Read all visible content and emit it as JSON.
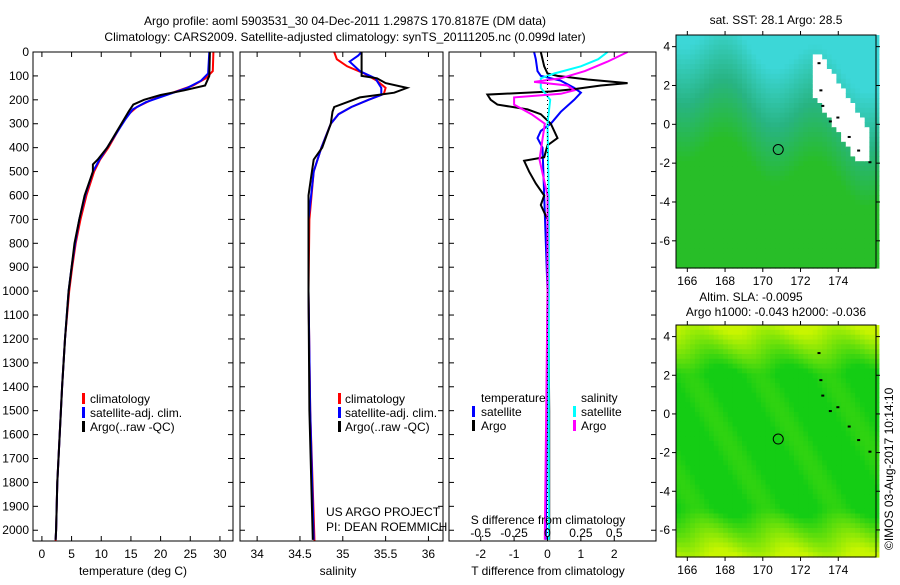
{
  "header": {
    "title_line1": "Argo profile: aoml 5903531_30 04-Dec-2011 1.2987S 170.8187E (DM data)",
    "title_line2": "Climatology: CARS2009. Satellite-adjusted climatology: synTS_20111205.nc (0.099d later)"
  },
  "project": {
    "line1": "US ARGO PROJECT",
    "line2": "PI: DEAN ROEMMICH"
  },
  "timestamp": "©IMOS 03-Aug-2017 10:14:10",
  "colors": {
    "climatology": "#ff0000",
    "satellite": "#0000ff",
    "argo": "#000000",
    "sal_satellite": "#00ffff",
    "sal_argo": "#ff00ff"
  },
  "chart_data": [
    {
      "type": "line",
      "name": "temperature",
      "xlabel": "temperature (deg C)",
      "ylabel": "",
      "xlim": [
        -1.5,
        32.2
      ],
      "ylim": [
        0,
        2045
      ],
      "xticks": [
        0,
        5,
        10,
        15,
        20,
        25,
        30
      ],
      "yticks": [
        0,
        100,
        200,
        300,
        400,
        500,
        600,
        700,
        800,
        900,
        1000,
        1100,
        1200,
        1300,
        1400,
        1500,
        1600,
        1700,
        1800,
        1900,
        2000
      ],
      "legend": [
        "climatology",
        "satellite-adj. clim.",
        "Argo(..raw -QC)"
      ],
      "series": [
        {
          "name": "climatology",
          "color": "#ff0000",
          "points": [
            [
              0,
              28.9
            ],
            [
              80,
              28.8
            ],
            [
              110,
              27.6
            ],
            [
              140,
              25.5
            ],
            [
              170,
              22
            ],
            [
              200,
              18.5
            ],
            [
              230,
              16
            ],
            [
              260,
              14.6
            ],
            [
              300,
              13.5
            ],
            [
              400,
              11.2
            ],
            [
              450,
              9.8
            ],
            [
              500,
              8.8
            ],
            [
              600,
              7.5
            ],
            [
              700,
              6.5
            ],
            [
              800,
              5.7
            ],
            [
              900,
              5.1
            ],
            [
              1000,
              4.6
            ],
            [
              1200,
              3.9
            ],
            [
              1400,
              3.4
            ],
            [
              1600,
              3.0
            ],
            [
              1800,
              2.6
            ],
            [
              2000,
              2.4
            ],
            [
              2045,
              2.3
            ]
          ]
        },
        {
          "name": "satellite-adj. clim.",
          "color": "#0000ff",
          "points": [
            [
              0,
              28.2
            ],
            [
              90,
              28.0
            ],
            [
              120,
              26.8
            ],
            [
              150,
              24.5
            ],
            [
              180,
              21
            ],
            [
              210,
              17.5
            ],
            [
              240,
              15.3
            ],
            [
              280,
              14.1
            ],
            [
              330,
              12.8
            ],
            [
              400,
              11.0
            ],
            [
              450,
              9.7
            ],
            [
              500,
              8.6
            ],
            [
              600,
              7.3
            ],
            [
              700,
              6.3
            ],
            [
              800,
              5.6
            ],
            [
              900,
              5.0
            ],
            [
              1000,
              4.5
            ],
            [
              1200,
              3.9
            ],
            [
              1400,
              3.4
            ],
            [
              1600,
              3.0
            ],
            [
              1800,
              2.6
            ],
            [
              2000,
              2.4
            ],
            [
              2040,
              2.3
            ]
          ]
        },
        {
          "name": "Argo",
          "color": "#000000",
          "points": [
            [
              0,
              28.3
            ],
            [
              100,
              28.2
            ],
            [
              140,
              27.5
            ],
            [
              160,
              24
            ],
            [
              180,
              20
            ],
            [
              200,
              17.2
            ],
            [
              220,
              15.4
            ],
            [
              250,
              14.6
            ],
            [
              300,
              13.4
            ],
            [
              400,
              11
            ],
            [
              450,
              9.4
            ],
            [
              470,
              8.6
            ],
            [
              500,
              8.6
            ],
            [
              600,
              7.2
            ],
            [
              700,
              6.3
            ],
            [
              800,
              5.5
            ],
            [
              900,
              5.0
            ],
            [
              1000,
              4.5
            ],
            [
              1200,
              3.9
            ],
            [
              1400,
              3.4
            ],
            [
              1600,
              3.0
            ],
            [
              1800,
              2.6
            ],
            [
              2000,
              2.4
            ],
            [
              2040,
              2.3
            ]
          ]
        }
      ]
    },
    {
      "type": "line",
      "name": "salinity",
      "xlabel": "salinity",
      "xlim": [
        33.8,
        36.17
      ],
      "ylim": [
        0,
        2045
      ],
      "xticks": [
        34,
        34.5,
        35,
        35.5,
        36
      ],
      "legend": [
        "climatology",
        "satellite-adj. clim.",
        "Argo(..raw -QC)"
      ],
      "series": [
        {
          "name": "climatology",
          "color": "#ff0000",
          "points": [
            [
              0,
              34.9
            ],
            [
              30,
              34.93
            ],
            [
              60,
              35.05
            ],
            [
              90,
              35.25
            ],
            [
              120,
              35.4
            ],
            [
              150,
              35.5
            ],
            [
              175,
              35.48
            ],
            [
              200,
              35.3
            ],
            [
              230,
              35.1
            ],
            [
              260,
              34.95
            ],
            [
              300,
              34.86
            ],
            [
              400,
              34.75
            ],
            [
              500,
              34.66
            ],
            [
              700,
              34.61
            ],
            [
              1000,
              34.6
            ],
            [
              1500,
              34.62
            ],
            [
              2045,
              34.67
            ]
          ]
        },
        {
          "name": "satellite-adj. clim.",
          "color": "#0000ff",
          "points": [
            [
              0,
              35.22
            ],
            [
              15,
              35.18
            ],
            [
              40,
              35.08
            ],
            [
              80,
              35.2
            ],
            [
              110,
              35.38
            ],
            [
              150,
              35.45
            ],
            [
              180,
              35.45
            ],
            [
              200,
              35.3
            ],
            [
              230,
              35.1
            ],
            [
              260,
              34.95
            ],
            [
              300,
              34.86
            ],
            [
              400,
              34.75
            ],
            [
              500,
              34.66
            ],
            [
              700,
              34.6
            ],
            [
              1000,
              34.6
            ],
            [
              1500,
              34.62
            ],
            [
              2040,
              34.66
            ]
          ]
        },
        {
          "name": "Argo",
          "color": "#000000",
          "points": [
            [
              0,
              35.22
            ],
            [
              100,
              35.22
            ],
            [
              110,
              35.4
            ],
            [
              130,
              35.5
            ],
            [
              150,
              35.75
            ],
            [
              170,
              35.6
            ],
            [
              190,
              35.2
            ],
            [
              210,
              35.05
            ],
            [
              230,
              34.9
            ],
            [
              250,
              34.88
            ],
            [
              300,
              34.86
            ],
            [
              400,
              34.76
            ],
            [
              450,
              34.66
            ],
            [
              500,
              34.64
            ],
            [
              600,
              34.6
            ],
            [
              1000,
              34.6
            ],
            [
              1500,
              34.61
            ],
            [
              2040,
              34.65
            ]
          ]
        }
      ]
    },
    {
      "type": "line",
      "name": "difference",
      "xlabel": "T difference from climatology",
      "x2label": "S difference from climatology",
      "xlim": [
        -2.95,
        3.25
      ],
      "ylim": [
        0,
        2045
      ],
      "xticks": [
        -2,
        -1,
        0,
        1,
        2
      ],
      "x2ticks": [
        -0.5,
        -0.25,
        0,
        0.25,
        0.5
      ],
      "x2tick_labels": [
        "-0.5",
        "-0.25",
        "0",
        "0.25",
        "0.5"
      ],
      "legend_temperature": {
        "title": "temperature",
        "items": [
          "satellite",
          "Argo"
        ]
      },
      "legend_salinity": {
        "title": "salinity",
        "items": [
          "satellite",
          "Argo"
        ]
      },
      "series": [
        {
          "name": "T satellite",
          "units": "T",
          "color": "#0000ff",
          "points": [
            [
              0,
              -0.4
            ],
            [
              30,
              -0.35
            ],
            [
              80,
              -0.3
            ],
            [
              100,
              -0.2
            ],
            [
              120,
              0.4
            ],
            [
              150,
              0.8
            ],
            [
              170,
              1.0
            ],
            [
              200,
              0.8
            ],
            [
              250,
              0.4
            ],
            [
              300,
              0.1
            ],
            [
              330,
              -0.2
            ],
            [
              360,
              -0.3
            ],
            [
              400,
              -0.15
            ],
            [
              600,
              -0.1
            ],
            [
              1000,
              0
            ],
            [
              1500,
              -0.02
            ],
            [
              2040,
              -0.05
            ]
          ]
        },
        {
          "name": "T Argo",
          "units": "T",
          "color": "#000000",
          "points": [
            [
              0,
              -0.2
            ],
            [
              60,
              -0.1
            ],
            [
              90,
              0
            ],
            [
              100,
              0.3
            ],
            [
              115,
              1.2
            ],
            [
              130,
              2.4
            ],
            [
              140,
              1.6
            ],
            [
              155,
              0.8
            ],
            [
              165,
              0.1
            ],
            [
              178,
              -1.8
            ],
            [
              200,
              -1.7
            ],
            [
              220,
              -1.5
            ],
            [
              240,
              -0.6
            ],
            [
              260,
              -0.2
            ],
            [
              300,
              0.1
            ],
            [
              360,
              0.3
            ],
            [
              390,
              0
            ],
            [
              440,
              -0.1
            ],
            [
              455,
              -0.7
            ],
            [
              500,
              -0.55
            ],
            [
              550,
              -0.35
            ],
            [
              600,
              -0.1
            ],
            [
              640,
              -0.2
            ],
            [
              700,
              0
            ],
            [
              1000,
              0.02
            ],
            [
              1500,
              0.05
            ],
            [
              2040,
              0.05
            ]
          ]
        },
        {
          "name": "S satellite",
          "units": "S",
          "color": "#00ffff",
          "points": [
            [
              0,
              0.45
            ],
            [
              30,
              0.38
            ],
            [
              60,
              0.25
            ],
            [
              90,
              0.05
            ],
            [
              110,
              -0.05
            ],
            [
              150,
              -0.05
            ],
            [
              200,
              0.02
            ],
            [
              300,
              0
            ],
            [
              600,
              0.01
            ],
            [
              1000,
              0.01
            ],
            [
              2040,
              0.01
            ]
          ]
        },
        {
          "name": "S Argo",
          "units": "S",
          "color": "#ff00ff",
          "points": [
            [
              0,
              0.6
            ],
            [
              40,
              0.45
            ],
            [
              80,
              0.28
            ],
            [
              110,
              0.1
            ],
            [
              125,
              -0.1
            ],
            [
              140,
              0.15
            ],
            [
              160,
              0.2
            ],
            [
              175,
              0.1
            ],
            [
              190,
              -0.25
            ],
            [
              220,
              -0.25
            ],
            [
              260,
              -0.12
            ],
            [
              300,
              -0.02
            ],
            [
              450,
              -0.06
            ],
            [
              600,
              0
            ],
            [
              1000,
              0
            ],
            [
              2040,
              -0.02
            ]
          ]
        }
      ]
    },
    {
      "type": "heatmap",
      "name": "sst-map",
      "title": "sat. SST: 28.1 Argo: 28.5",
      "xlim": [
        165.4,
        176
      ],
      "ylim": [
        -7.4,
        4.6
      ],
      "xticks": [
        166,
        168,
        170,
        172,
        174
      ],
      "yticks": [
        4,
        2,
        0,
        -2,
        -4,
        -6
      ],
      "profile_location": [
        170.8187,
        -1.2987
      ]
    },
    {
      "type": "heatmap",
      "name": "sla-map",
      "title_line1": "Altim. SLA: -0.0095",
      "title_line2": "Argo h1000: -0.043 h2000: -0.036",
      "xlim": [
        165.4,
        176
      ],
      "ylim": [
        -7.4,
        4.6
      ],
      "xticks": [
        166,
        168,
        170,
        172,
        174
      ],
      "yticks": [
        4,
        2,
        0,
        -2,
        -4,
        -6
      ],
      "profile_location": [
        170.8187,
        -1.2987
      ]
    }
  ]
}
